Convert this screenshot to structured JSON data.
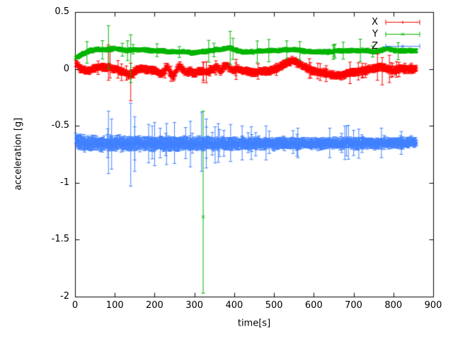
{
  "figure": {
    "background": "#ffffff",
    "text_color": "#000000",
    "border_color": "#000000"
  },
  "chart_data": {
    "type": "scatter",
    "style": "points-with-errorbars",
    "title": "",
    "xlabel": "time[s]",
    "ylabel": "acceleration [g]",
    "xlim": [
      0,
      900
    ],
    "ylim": [
      -2,
      0.5
    ],
    "grid": false,
    "xticks": {
      "values": [
        0,
        100,
        200,
        300,
        400,
        500,
        600,
        700,
        800,
        900
      ],
      "labels": [
        "0",
        "100",
        "200",
        "300",
        "400",
        "500",
        "600",
        "700",
        "800",
        "900"
      ]
    },
    "yticks": {
      "values": [
        0.5,
        0,
        -0.5,
        -1,
        -1.5,
        -2
      ],
      "labels": [
        "0.5",
        "0",
        "-0.5",
        "-1",
        "-1.5",
        "-2"
      ]
    },
    "legend": {
      "position": "top-right",
      "entries": [
        {
          "label": "X",
          "color": "#ff0000",
          "marker": "plus"
        },
        {
          "label": "Y",
          "color": "#00b400",
          "marker": "cross"
        },
        {
          "label": "Z",
          "color": "#4080ff",
          "marker": "star"
        }
      ]
    },
    "series": [
      {
        "name": "X",
        "color": "#ff0000",
        "marker": "plus",
        "seed": 101,
        "t_range": [
          2,
          858,
          1
        ],
        "noise_amp": 0.01,
        "spread": [
          1.0,
          1.0
        ],
        "errorbar": {
          "base": 0.015,
          "var": 0.02,
          "big_chance": 0.03,
          "big_base": 0.045,
          "big_var": 0.05
        },
        "anchors": [
          [
            2,
            0.05
          ],
          [
            8,
            0.03
          ],
          [
            15,
            0.0
          ],
          [
            25,
            -0.01
          ],
          [
            35,
            -0.02
          ],
          [
            45,
            0.0
          ],
          [
            55,
            0.01
          ],
          [
            65,
            0.02
          ],
          [
            75,
            0.01
          ],
          [
            85,
            0.02
          ],
          [
            95,
            0.0
          ],
          [
            105,
            0.0
          ],
          [
            115,
            -0.02
          ],
          [
            125,
            -0.03
          ],
          [
            135,
            -0.05
          ],
          [
            145,
            -0.04
          ],
          [
            155,
            -0.01
          ],
          [
            165,
            0.0
          ],
          [
            175,
            0.0
          ],
          [
            185,
            -0.01
          ],
          [
            195,
            -0.01
          ],
          [
            205,
            -0.02
          ],
          [
            215,
            -0.05
          ],
          [
            225,
            -0.02
          ],
          [
            232,
            0.02
          ],
          [
            240,
            -0.04
          ],
          [
            248,
            -0.07
          ],
          [
            256,
            0.0
          ],
          [
            264,
            0.03
          ],
          [
            272,
            -0.01
          ],
          [
            280,
            -0.03
          ],
          [
            290,
            -0.02
          ],
          [
            300,
            -0.04
          ],
          [
            310,
            -0.02
          ],
          [
            320,
            -0.02
          ],
          [
            330,
            -0.03
          ],
          [
            340,
            -0.01
          ],
          [
            350,
            0.0
          ],
          [
            358,
            0.02
          ],
          [
            366,
            -0.02
          ],
          [
            374,
            0.02
          ],
          [
            382,
            0.03
          ],
          [
            390,
            0.0
          ],
          [
            398,
            -0.02
          ],
          [
            406,
            0.0
          ],
          [
            415,
            -0.01
          ],
          [
            425,
            -0.02
          ],
          [
            435,
            -0.02
          ],
          [
            445,
            -0.03
          ],
          [
            455,
            -0.03
          ],
          [
            465,
            -0.02
          ],
          [
            475,
            -0.02
          ],
          [
            485,
            -0.02
          ],
          [
            495,
            -0.01
          ],
          [
            505,
            0.0
          ],
          [
            515,
            0.02
          ],
          [
            525,
            0.04
          ],
          [
            535,
            0.06
          ],
          [
            545,
            0.07
          ],
          [
            555,
            0.06
          ],
          [
            565,
            0.04
          ],
          [
            575,
            0.02
          ],
          [
            585,
            0.0
          ],
          [
            595,
            -0.01
          ],
          [
            605,
            -0.02
          ],
          [
            615,
            -0.03
          ],
          [
            625,
            -0.03
          ],
          [
            635,
            -0.04
          ],
          [
            645,
            -0.05
          ],
          [
            655,
            -0.06
          ],
          [
            665,
            -0.06
          ],
          [
            675,
            -0.05
          ],
          [
            685,
            -0.04
          ],
          [
            695,
            -0.03
          ],
          [
            705,
            -0.03
          ],
          [
            715,
            -0.02
          ],
          [
            725,
            -0.02
          ],
          [
            735,
            -0.01
          ],
          [
            745,
            0.0
          ],
          [
            755,
            0.01
          ],
          [
            765,
            0.02
          ],
          [
            775,
            0.01
          ],
          [
            785,
            0.0
          ],
          [
            795,
            -0.01
          ],
          [
            805,
            -0.01
          ],
          [
            815,
            0.0
          ],
          [
            825,
            0.0
          ],
          [
            835,
            0.0
          ],
          [
            845,
            0.0
          ],
          [
            858,
            0.0
          ]
        ],
        "outliers": [
          [
            84,
            0.02,
            -0.1,
            0.21
          ],
          [
            88,
            0.0,
            -0.08,
            0.15
          ],
          [
            140,
            -0.05,
            -0.28,
            0.05
          ],
          [
            322,
            -0.03,
            -0.12,
            0.06
          ],
          [
            760,
            0.02,
            -0.1,
            0.13
          ],
          [
            772,
            0.0,
            -0.14,
            0.1
          ],
          [
            790,
            0.01,
            -0.12,
            0.12
          ]
        ]
      },
      {
        "name": "Y",
        "color": "#00b400",
        "marker": "cross",
        "seed": 202,
        "t_range": [
          2,
          858,
          1
        ],
        "noise_amp": 0.006,
        "spread": [
          1.0,
          1.0
        ],
        "errorbar": {
          "base": 0.008,
          "var": 0.012,
          "big_chance": 0.025,
          "big_base": 0.04,
          "big_var": 0.06
        },
        "anchors": [
          [
            2,
            0.1
          ],
          [
            10,
            0.11
          ],
          [
            20,
            0.13
          ],
          [
            30,
            0.15
          ],
          [
            40,
            0.16
          ],
          [
            55,
            0.17
          ],
          [
            70,
            0.17
          ],
          [
            85,
            0.17
          ],
          [
            100,
            0.18
          ],
          [
            115,
            0.17
          ],
          [
            130,
            0.16
          ],
          [
            145,
            0.17
          ],
          [
            160,
            0.17
          ],
          [
            175,
            0.17
          ],
          [
            190,
            0.16
          ],
          [
            205,
            0.16
          ],
          [
            220,
            0.16
          ],
          [
            235,
            0.15
          ],
          [
            250,
            0.15
          ],
          [
            265,
            0.15
          ],
          [
            280,
            0.15
          ],
          [
            295,
            0.14
          ],
          [
            310,
            0.15
          ],
          [
            325,
            0.15
          ],
          [
            340,
            0.16
          ],
          [
            355,
            0.17
          ],
          [
            370,
            0.17
          ],
          [
            380,
            0.18
          ],
          [
            390,
            0.19
          ],
          [
            400,
            0.17
          ],
          [
            410,
            0.16
          ],
          [
            420,
            0.15
          ],
          [
            435,
            0.15
          ],
          [
            450,
            0.15
          ],
          [
            465,
            0.16
          ],
          [
            480,
            0.16
          ],
          [
            495,
            0.16
          ],
          [
            510,
            0.16
          ],
          [
            525,
            0.17
          ],
          [
            540,
            0.17
          ],
          [
            555,
            0.17
          ],
          [
            570,
            0.16
          ],
          [
            585,
            0.15
          ],
          [
            600,
            0.15
          ],
          [
            615,
            0.15
          ],
          [
            630,
            0.15
          ],
          [
            645,
            0.15
          ],
          [
            660,
            0.16
          ],
          [
            675,
            0.16
          ],
          [
            690,
            0.16
          ],
          [
            705,
            0.16
          ],
          [
            720,
            0.16
          ],
          [
            735,
            0.16
          ],
          [
            750,
            0.15
          ],
          [
            765,
            0.16
          ],
          [
            775,
            0.17
          ],
          [
            785,
            0.18
          ],
          [
            795,
            0.17
          ],
          [
            805,
            0.16
          ],
          [
            815,
            0.16
          ],
          [
            825,
            0.16
          ],
          [
            840,
            0.16
          ],
          [
            858,
            0.16
          ]
        ],
        "outliers": [
          [
            30,
            0.14,
            0.05,
            0.24
          ],
          [
            84,
            0.17,
            0.0,
            0.38
          ],
          [
            140,
            0.16,
            -0.12,
            0.3
          ],
          [
            322,
            -1.3,
            -1.97,
            -0.37
          ],
          [
            390,
            0.19,
            0.04,
            0.33
          ]
        ]
      },
      {
        "name": "Z",
        "color": "#4080ff",
        "marker": "star",
        "seed": 303,
        "t_range": [
          2,
          858,
          1
        ],
        "noise_amp": 0.018,
        "spread": [
          1.2,
          0.8
        ],
        "errorbar": {
          "base": 0.025,
          "var": 0.03,
          "big_chance": 0.05,
          "big_base": 0.07,
          "big_var": 0.1
        },
        "anchors": [
          [
            2,
            -0.62
          ],
          [
            10,
            -0.64
          ],
          [
            20,
            -0.65
          ],
          [
            35,
            -0.66
          ],
          [
            50,
            -0.65
          ],
          [
            65,
            -0.66
          ],
          [
            80,
            -0.65
          ],
          [
            95,
            -0.66
          ],
          [
            110,
            -0.65
          ],
          [
            125,
            -0.66
          ],
          [
            140,
            -0.66
          ],
          [
            155,
            -0.65
          ],
          [
            170,
            -0.66
          ],
          [
            185,
            -0.65
          ],
          [
            200,
            -0.66
          ],
          [
            215,
            -0.65
          ],
          [
            230,
            -0.66
          ],
          [
            245,
            -0.65
          ],
          [
            260,
            -0.66
          ],
          [
            275,
            -0.65
          ],
          [
            290,
            -0.66
          ],
          [
            305,
            -0.65
          ],
          [
            320,
            -0.66
          ],
          [
            335,
            -0.65
          ],
          [
            350,
            -0.66
          ],
          [
            365,
            -0.65
          ],
          [
            380,
            -0.66
          ],
          [
            395,
            -0.65
          ],
          [
            410,
            -0.66
          ],
          [
            425,
            -0.65
          ],
          [
            440,
            -0.66
          ],
          [
            455,
            -0.65
          ],
          [
            470,
            -0.66
          ],
          [
            485,
            -0.65
          ],
          [
            500,
            -0.66
          ],
          [
            515,
            -0.65
          ],
          [
            530,
            -0.66
          ],
          [
            545,
            -0.65
          ],
          [
            560,
            -0.66
          ],
          [
            575,
            -0.65
          ],
          [
            590,
            -0.66
          ],
          [
            605,
            -0.65
          ],
          [
            620,
            -0.66
          ],
          [
            635,
            -0.65
          ],
          [
            650,
            -0.65
          ],
          [
            665,
            -0.66
          ],
          [
            680,
            -0.65
          ],
          [
            695,
            -0.65
          ],
          [
            710,
            -0.66
          ],
          [
            725,
            -0.65
          ],
          [
            740,
            -0.65
          ],
          [
            755,
            -0.66
          ],
          [
            770,
            -0.65
          ],
          [
            785,
            -0.65
          ],
          [
            800,
            -0.65
          ],
          [
            815,
            -0.65
          ],
          [
            830,
            -0.65
          ],
          [
            845,
            -0.64
          ],
          [
            858,
            -0.645
          ]
        ],
        "outliers": [
          [
            84,
            -0.65,
            -0.92,
            -0.37
          ],
          [
            92,
            -0.66,
            -0.88,
            -0.44
          ],
          [
            140,
            -0.66,
            -1.03,
            -0.3
          ],
          [
            150,
            -0.66,
            -0.9,
            -0.42
          ],
          [
            200,
            -0.65,
            -0.85,
            -0.47
          ],
          [
            230,
            -0.66,
            -0.84,
            -0.48
          ],
          [
            250,
            -0.65,
            -0.83,
            -0.47
          ],
          [
            290,
            -0.66,
            -0.86,
            -0.46
          ],
          [
            318,
            -0.65,
            -0.9,
            -0.38
          ],
          [
            330,
            -0.66,
            -0.87,
            -0.44
          ],
          [
            360,
            -0.65,
            -0.82,
            -0.48
          ],
          [
            420,
            -0.66,
            -0.8,
            -0.5
          ],
          [
            480,
            -0.65,
            -0.8,
            -0.5
          ],
          [
            560,
            -0.66,
            -0.78,
            -0.52
          ],
          [
            640,
            -0.65,
            -0.78,
            -0.52
          ],
          [
            700,
            -0.65,
            -0.76,
            -0.54
          ],
          [
            770,
            -0.65,
            -0.78,
            -0.52
          ],
          [
            820,
            -0.65,
            -0.75,
            -0.55
          ]
        ]
      }
    ]
  }
}
